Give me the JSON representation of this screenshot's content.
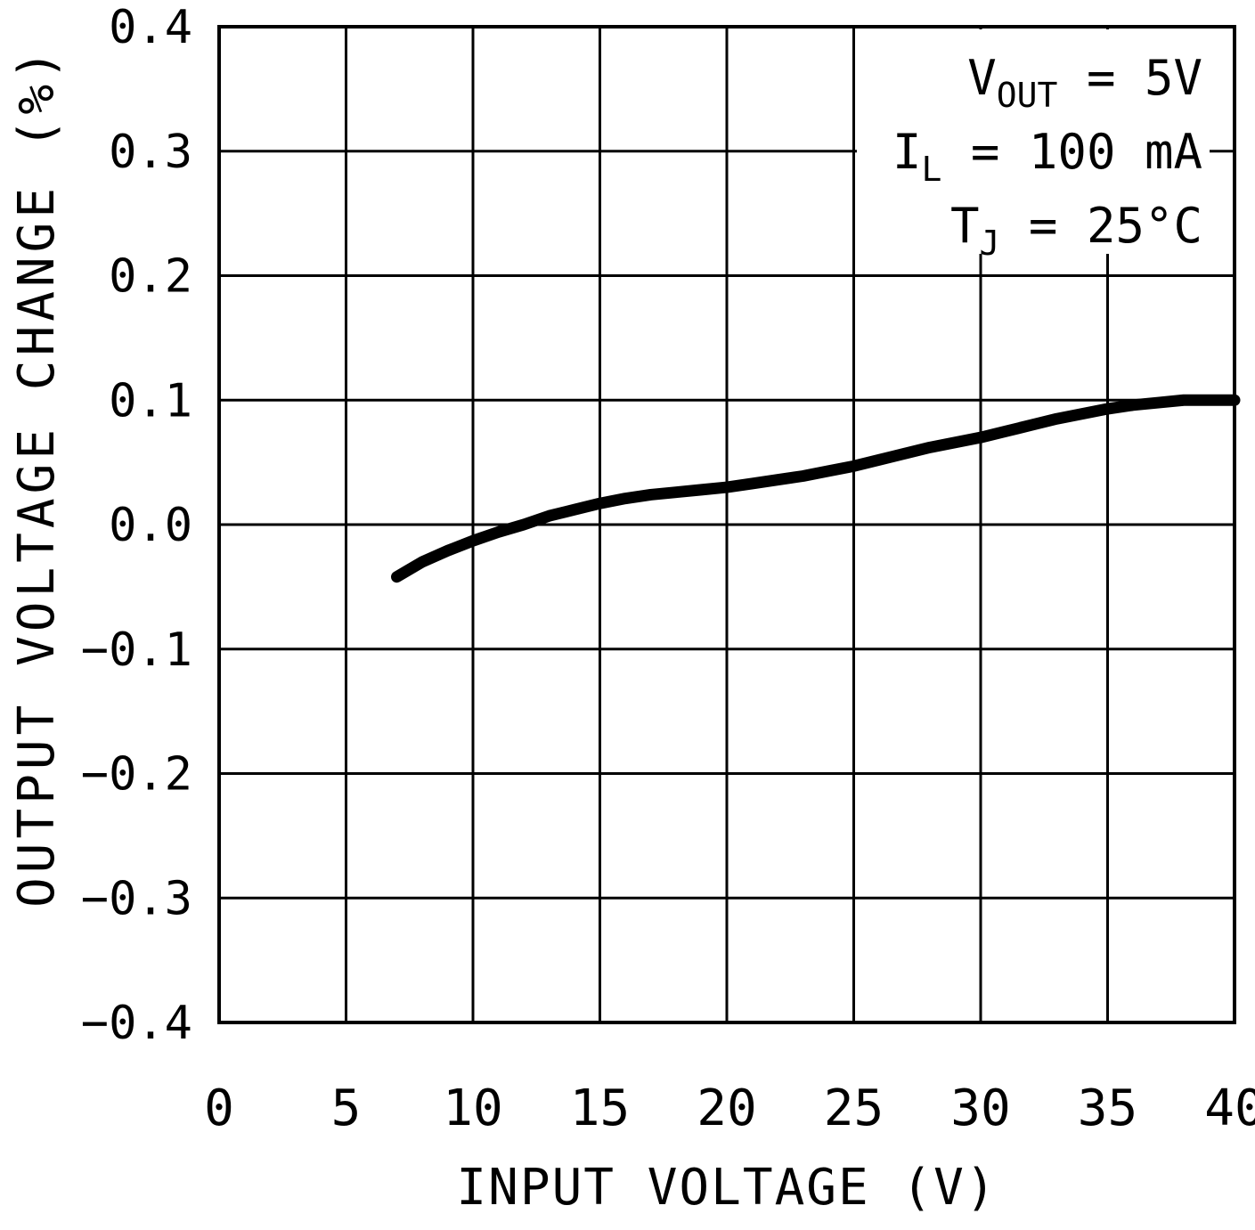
{
  "chart_data": {
    "type": "line",
    "title": "",
    "xlabel": "INPUT VOLTAGE (V)",
    "ylabel": "OUTPUT VOLTAGE CHANGE (%)",
    "xlim": [
      0,
      40
    ],
    "ylim": [
      -0.4,
      0.4
    ],
    "grid": true,
    "legend": false,
    "x_tick_values": [
      0,
      5,
      10,
      15,
      20,
      25,
      30,
      35,
      40
    ],
    "x_tick_labels": [
      "0",
      "5",
      "10",
      "15",
      "20",
      "25",
      "30",
      "35",
      "40"
    ],
    "y_tick_values": [
      0.4,
      0.3,
      0.2,
      0.1,
      0.0,
      -0.1,
      -0.2,
      -0.3,
      -0.4
    ],
    "y_tick_labels": [
      "0.4",
      "0.3",
      "0.2",
      "0.1",
      "0.0",
      "−0.1",
      "−0.2",
      "−0.3",
      "−0.4"
    ],
    "annotations": [
      {
        "base": "V",
        "sub": "OUT",
        "rest": " = 5V"
      },
      {
        "base": "I",
        "sub": "L",
        "rest": " = 100 mA"
      },
      {
        "base": "T",
        "sub": "J",
        "rest": " = 25°C"
      }
    ],
    "colors": {
      "line": "#000000",
      "grid": "#000000",
      "axis": "#000000",
      "background": "#ffffff"
    },
    "series": [
      {
        "name": "output voltage change vs input voltage",
        "points": [
          [
            7,
            -0.042
          ],
          [
            8,
            -0.03
          ],
          [
            9,
            -0.021
          ],
          [
            10,
            -0.013
          ],
          [
            11,
            -0.006
          ],
          [
            12,
            0.0
          ],
          [
            13,
            0.007
          ],
          [
            14,
            0.012
          ],
          [
            15,
            0.017
          ],
          [
            16,
            0.021
          ],
          [
            17,
            0.024
          ],
          [
            18,
            0.026
          ],
          [
            19,
            0.028
          ],
          [
            20,
            0.03
          ],
          [
            21,
            0.033
          ],
          [
            22,
            0.036
          ],
          [
            23,
            0.039
          ],
          [
            24,
            0.043
          ],
          [
            25,
            0.047
          ],
          [
            26,
            0.052
          ],
          [
            27,
            0.057
          ],
          [
            28,
            0.062
          ],
          [
            29,
            0.066
          ],
          [
            30,
            0.07
          ],
          [
            31,
            0.075
          ],
          [
            32,
            0.08
          ],
          [
            33,
            0.085
          ],
          [
            34,
            0.089
          ],
          [
            35,
            0.093
          ],
          [
            36,
            0.096
          ],
          [
            37,
            0.098
          ],
          [
            38,
            0.1
          ],
          [
            39,
            0.1
          ],
          [
            40,
            0.1
          ]
        ]
      }
    ]
  }
}
